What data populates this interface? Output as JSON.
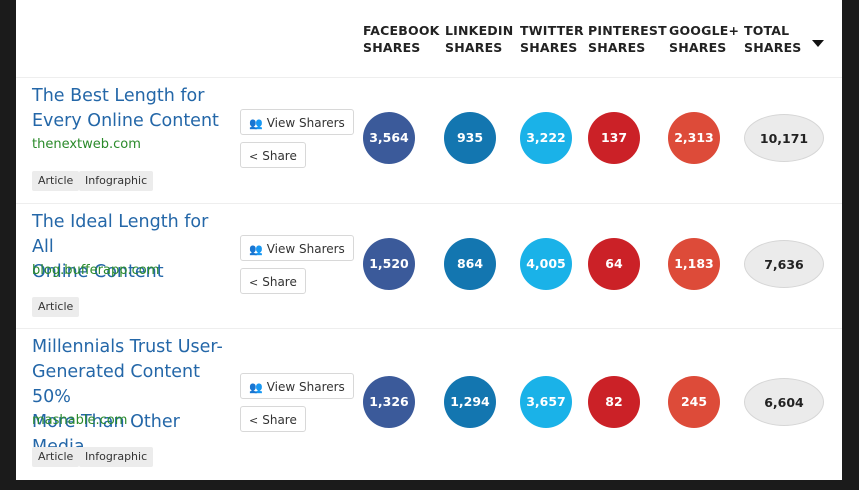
{
  "headers": [
    {
      "line1": "FACEBOOK",
      "line2": "SHARES"
    },
    {
      "line1": "LINKEDIN",
      "line2": "SHARES"
    },
    {
      "line1": "TWITTER",
      "line2": "SHARES"
    },
    {
      "line1": "PINTEREST",
      "line2": "SHARES"
    },
    {
      "line1": "GOOGLE+",
      "line2": "SHARES"
    },
    {
      "line1": "TOTAL",
      "line2": "SHARES"
    }
  ],
  "buttons": {
    "view_sharers": "View Sharers",
    "share": "Share"
  },
  "colors": {
    "facebook": "#3b5a9a",
    "linkedin": "#1376b0",
    "twitter": "#1ab2e8",
    "pinterest": "#cb2127",
    "googleplus": "#dd4b39",
    "title_link": "#2467a8",
    "domain": "#2a8a2a"
  },
  "rows": [
    {
      "title_lines": [
        "The Best Length for",
        "Every Online Content"
      ],
      "domain": "thenextweb.com",
      "tags": [
        "Article",
        "Infographic"
      ],
      "facebook": "3,564",
      "linkedin": "935",
      "twitter": "3,222",
      "pinterest": "137",
      "googleplus": "2,313",
      "total": "10,171"
    },
    {
      "title_lines": [
        "The Ideal Length for All",
        "Online Content"
      ],
      "domain": "blog.bufferapp.com",
      "tags": [
        "Article"
      ],
      "facebook": "1,520",
      "linkedin": "864",
      "twitter": "4,005",
      "pinterest": "64",
      "googleplus": "1,183",
      "total": "7,636"
    },
    {
      "title_lines": [
        "Millennials Trust User-",
        "Generated Content 50%",
        "More Than Other Media"
      ],
      "domain": "mashable.com",
      "tags": [
        "Article",
        "Infographic"
      ],
      "facebook": "1,326",
      "linkedin": "1,294",
      "twitter": "3,657",
      "pinterest": "82",
      "googleplus": "245",
      "total": "6,604"
    }
  ]
}
